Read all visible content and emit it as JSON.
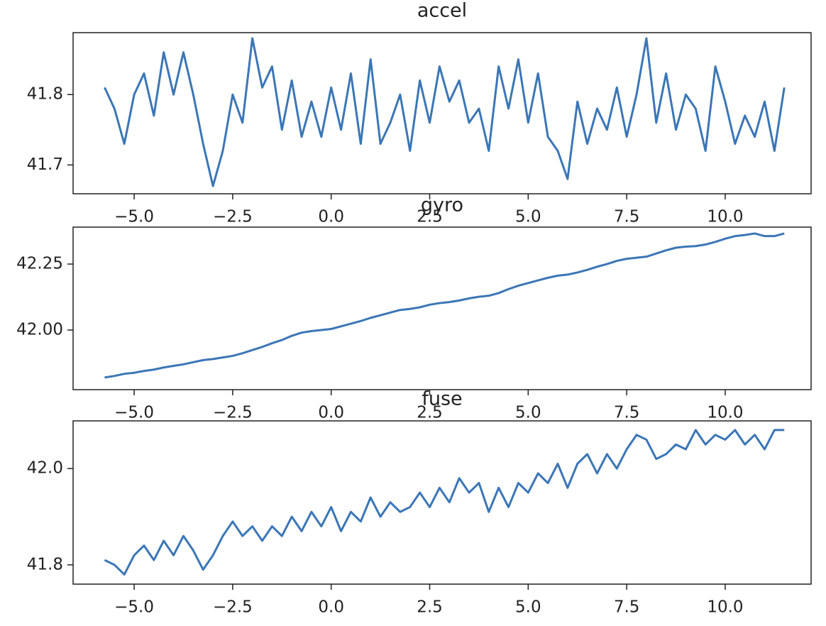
{
  "chart_data": [
    {
      "type": "line",
      "title": "accel",
      "color": "#3b76b6",
      "x": [
        -5.75,
        -5.5,
        -5.25,
        -5.0,
        -4.75,
        -4.5,
        -4.25,
        -4.0,
        -3.75,
        -3.5,
        -3.25,
        -3.0,
        -2.75,
        -2.5,
        -2.25,
        -2.0,
        -1.75,
        -1.5,
        -1.25,
        -1.0,
        -0.75,
        -0.5,
        -0.25,
        0.0,
        0.25,
        0.5,
        0.75,
        1.0,
        1.25,
        1.5,
        1.75,
        2.0,
        2.25,
        2.5,
        2.75,
        3.0,
        3.25,
        3.5,
        3.75,
        4.0,
        4.25,
        4.5,
        4.75,
        5.0,
        5.25,
        5.5,
        5.75,
        6.0,
        6.25,
        6.5,
        6.75,
        7.0,
        7.25,
        7.5,
        7.75,
        8.0,
        8.25,
        8.5,
        8.75,
        9.0,
        9.25,
        9.5,
        9.75,
        10.0,
        10.25,
        10.5,
        10.75,
        11.0,
        11.25,
        11.5
      ],
      "values": [
        41.81,
        41.78,
        41.73,
        41.8,
        41.83,
        41.77,
        41.86,
        41.8,
        41.86,
        41.8,
        41.73,
        41.67,
        41.72,
        41.8,
        41.76,
        41.88,
        41.81,
        41.84,
        41.75,
        41.82,
        41.74,
        41.79,
        41.74,
        41.81,
        41.75,
        41.83,
        41.73,
        41.85,
        41.73,
        41.76,
        41.8,
        41.72,
        41.82,
        41.76,
        41.84,
        41.79,
        41.82,
        41.76,
        41.78,
        41.72,
        41.84,
        41.78,
        41.85,
        41.76,
        41.83,
        41.74,
        41.72,
        41.68,
        41.79,
        41.73,
        41.78,
        41.75,
        41.81,
        41.74,
        41.8,
        41.88,
        41.76,
        41.83,
        41.75,
        41.8,
        41.78,
        41.72,
        41.84,
        41.79,
        41.73,
        41.77,
        41.74,
        41.79,
        41.72,
        41.81
      ],
      "xlim": [
        -6.55,
        12.18
      ],
      "ylim": [
        41.659,
        41.888
      ],
      "xticks": [
        {
          "value": -5,
          "label": "−5.0"
        },
        {
          "value": -2.5,
          "label": "−2.5"
        },
        {
          "value": 0,
          "label": "0.0"
        },
        2.5,
        {
          "value": 5,
          "label": "5.0"
        },
        7.5,
        {
          "value": 10,
          "label": "10.0"
        }
      ],
      "yticks": [
        41.7,
        41.8
      ]
    },
    {
      "type": "line",
      "title": "gyro",
      "color": "#3b76b6",
      "x": [
        -5.75,
        -5.5,
        -5.25,
        -5.0,
        -4.75,
        -4.5,
        -4.25,
        -4.0,
        -3.75,
        -3.5,
        -3.25,
        -3.0,
        -2.75,
        -2.5,
        -2.25,
        -2.0,
        -1.75,
        -1.5,
        -1.25,
        -1.0,
        -0.75,
        -0.5,
        -0.25,
        0.0,
        0.25,
        0.5,
        0.75,
        1.0,
        1.25,
        1.5,
        1.75,
        2.0,
        2.25,
        2.5,
        2.75,
        3.0,
        3.25,
        3.5,
        3.75,
        4.0,
        4.25,
        4.5,
        4.75,
        5.0,
        5.25,
        5.5,
        5.75,
        6.0,
        6.25,
        6.5,
        6.75,
        7.0,
        7.25,
        7.5,
        7.75,
        8.0,
        8.25,
        8.5,
        8.75,
        9.0,
        9.25,
        9.5,
        9.75,
        10.0,
        10.25,
        10.5,
        10.75,
        11.0,
        11.25,
        11.5
      ],
      "values": [
        41.82,
        41.826,
        41.834,
        41.838,
        41.845,
        41.85,
        41.858,
        41.864,
        41.87,
        41.878,
        41.886,
        41.89,
        41.896,
        41.902,
        41.912,
        41.924,
        41.936,
        41.95,
        41.962,
        41.978,
        41.99,
        41.996,
        42.0,
        42.004,
        42.014,
        42.024,
        42.034,
        42.046,
        42.056,
        42.066,
        42.076,
        42.08,
        42.086,
        42.096,
        42.102,
        42.106,
        42.112,
        42.12,
        42.126,
        42.13,
        42.14,
        42.155,
        42.168,
        42.178,
        42.188,
        42.198,
        42.206,
        42.21,
        42.218,
        42.228,
        42.24,
        42.25,
        42.262,
        42.27,
        42.274,
        42.278,
        42.29,
        42.302,
        42.312,
        42.316,
        42.318,
        42.324,
        42.334,
        42.346,
        42.356,
        42.36,
        42.366,
        42.356,
        42.356,
        42.366
      ],
      "xlim": [
        -6.55,
        12.18
      ],
      "ylim": [
        41.774,
        42.39
      ],
      "xticks": [
        {
          "value": -5,
          "label": "−5.0"
        },
        {
          "value": -2.5,
          "label": "−2.5"
        },
        {
          "value": 0,
          "label": "0.0"
        },
        2.5,
        {
          "value": 5,
          "label": "5.0"
        },
        7.5,
        {
          "value": 10,
          "label": "10.0"
        }
      ],
      "yticks": [
        {
          "value": 42,
          "label": "42.00"
        },
        42.25
      ]
    },
    {
      "type": "line",
      "title": "fuse",
      "color": "#3b76b6",
      "x": [
        -5.75,
        -5.5,
        -5.25,
        -5.0,
        -4.75,
        -4.5,
        -4.25,
        -4.0,
        -3.75,
        -3.5,
        -3.25,
        -3.0,
        -2.75,
        -2.5,
        -2.25,
        -2.0,
        -1.75,
        -1.5,
        -1.25,
        -1.0,
        -0.75,
        -0.5,
        -0.25,
        0.0,
        0.25,
        0.5,
        0.75,
        1.0,
        1.25,
        1.5,
        1.75,
        2.0,
        2.25,
        2.5,
        2.75,
        3.0,
        3.25,
        3.5,
        3.75,
        4.0,
        4.25,
        4.5,
        4.75,
        5.0,
        5.25,
        5.5,
        5.75,
        6.0,
        6.25,
        6.5,
        6.75,
        7.0,
        7.25,
        7.5,
        7.75,
        8.0,
        8.25,
        8.5,
        8.75,
        9.0,
        9.25,
        9.5,
        9.75,
        10.0,
        10.25,
        10.5,
        10.75,
        11.0,
        11.25,
        11.5
      ],
      "values": [
        41.81,
        41.8,
        41.78,
        41.82,
        41.84,
        41.81,
        41.85,
        41.82,
        41.86,
        41.83,
        41.79,
        41.82,
        41.86,
        41.89,
        41.86,
        41.88,
        41.85,
        41.88,
        41.86,
        41.9,
        41.87,
        41.91,
        41.88,
        41.92,
        41.87,
        41.91,
        41.89,
        41.94,
        41.9,
        41.93,
        41.91,
        41.92,
        41.95,
        41.92,
        41.96,
        41.93,
        41.98,
        41.95,
        41.97,
        41.91,
        41.96,
        41.92,
        41.97,
        41.95,
        41.99,
        41.97,
        42.01,
        41.96,
        42.01,
        42.03,
        41.99,
        42.03,
        42.0,
        42.04,
        42.07,
        42.06,
        42.02,
        42.03,
        42.05,
        42.04,
        42.08,
        42.05,
        42.07,
        42.06,
        42.08,
        42.05,
        42.07,
        42.04,
        42.08,
        42.08
      ],
      "xlim": [
        -6.55,
        12.18
      ],
      "ylim": [
        41.76,
        42.099
      ],
      "xticks": [
        {
          "value": -5,
          "label": "−5.0"
        },
        {
          "value": -2.5,
          "label": "−2.5"
        },
        {
          "value": 0,
          "label": "0.0"
        },
        2.5,
        {
          "value": 5,
          "label": "5.0"
        },
        7.5,
        {
          "value": 10,
          "label": "10.0"
        }
      ],
      "yticks": [
        41.8,
        {
          "value": 42,
          "label": "42.0"
        }
      ]
    }
  ]
}
